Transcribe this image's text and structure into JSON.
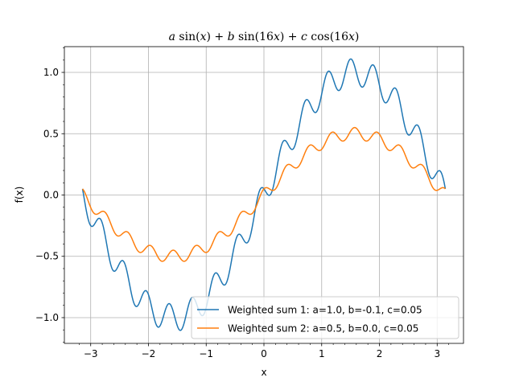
{
  "chart_data": {
    "type": "line",
    "title": "a sin(x) + b sin(16x) + c cos(16x)",
    "xlabel": "x",
    "ylabel": "f(x)",
    "xlim": [
      -3.456,
      3.456
    ],
    "ylim": [
      -1.21,
      1.21
    ],
    "xticks": [
      -3,
      -2,
      -1,
      0,
      1,
      2,
      3
    ],
    "xtick_labels": [
      "−3",
      "−2",
      "−1",
      "0",
      "1",
      "2",
      "3"
    ],
    "yticks": [
      -1.0,
      -0.5,
      0.0,
      0.5,
      1.0
    ],
    "ytick_labels": [
      "−1.0",
      "−0.5",
      "0.0",
      "0.5",
      "1.0"
    ],
    "grid": true,
    "legend_position": "lower-right",
    "x_range": [
      -3.14159,
      3.14159
    ],
    "series": [
      {
        "name": "Weighted sum 1: a=1.0, b=-0.1, c=0.05",
        "a": 1.0,
        "b": -0.1,
        "c": 0.05,
        "color": "#1f77b4"
      },
      {
        "name": "Weighted sum 2: a=0.5, b=0.0, c=0.05",
        "a": 0.5,
        "b": 0.0,
        "c": 0.05,
        "color": "#ff7f0e"
      }
    ]
  }
}
